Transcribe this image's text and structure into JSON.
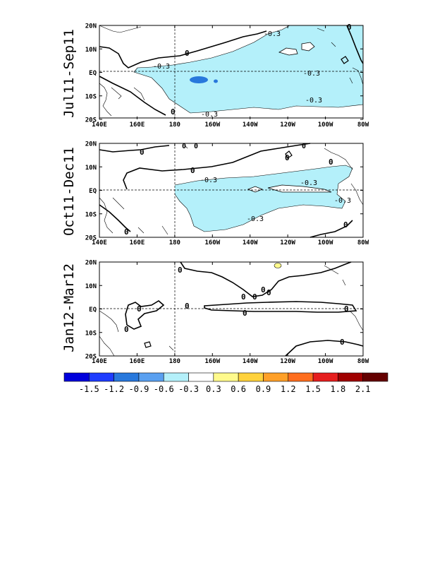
{
  "panels": [
    {
      "label": "Jul11-Sep11",
      "contour_labels": [
        "-0.3",
        "0",
        "-0.3",
        "-0.3",
        "-0.3",
        "-0.3",
        "0",
        "0"
      ]
    },
    {
      "label": "Oct11-Dec11",
      "contour_labels": [
        "0",
        "0",
        "-0.3",
        "-0.3",
        "-0.3",
        "-0.3",
        "0",
        "0",
        "0",
        "0",
        "0",
        "0",
        "0"
      ]
    },
    {
      "label": "Jan12-Mar12",
      "contour_labels": [
        "0",
        "0",
        "0",
        "0",
        "0",
        "0",
        "0",
        "0",
        "0",
        "0",
        "0"
      ]
    }
  ],
  "axes": {
    "lat_ticks": [
      "20N",
      "10N",
      "EQ",
      "10S",
      "20S"
    ],
    "lon_ticks": [
      "140E",
      "160E",
      "180",
      "160W",
      "140W",
      "120W",
      "100W",
      "80W"
    ]
  },
  "colorbar": {
    "labels": [
      "-1.5",
      "-1.2",
      "-0.9",
      "-0.6",
      "-0.3",
      "0.3",
      "0.6",
      "0.9",
      "1.2",
      "1.5",
      "1.8",
      "2.1"
    ],
    "colors": [
      "#0000dc",
      "#1e3cff",
      "#2878dc",
      "#5aa0f0",
      "#b4f0fa",
      "#ffffff",
      "#fffa8c",
      "#ffd23c",
      "#ffa028",
      "#ff6e1e",
      "#e61e1e",
      "#a00000",
      "#640000"
    ]
  }
}
